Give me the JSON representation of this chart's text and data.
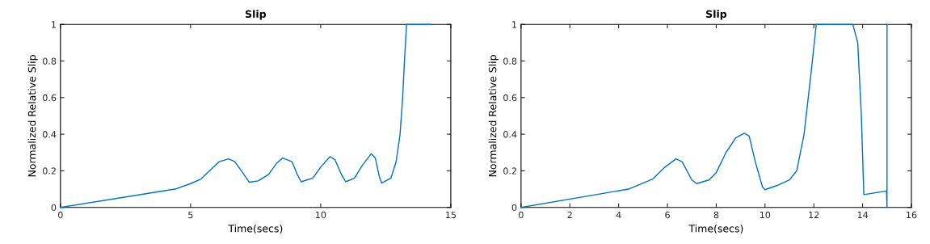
{
  "chart_data": [
    {
      "type": "line",
      "title": "Slip",
      "xlabel": "Time(secs)",
      "ylabel": "Normalized Relative Slip",
      "xlim": [
        0,
        15
      ],
      "xticks": [
        0,
        5,
        10,
        15
      ],
      "ylim": [
        0,
        1
      ],
      "yticks": [
        0,
        0.2,
        0.4,
        0.6,
        0.8,
        1
      ],
      "grid": false,
      "legend": false,
      "series": [
        {
          "color": "#0072bd",
          "x": [
            0,
            4.4,
            5.0,
            5.4,
            5.8,
            6.1,
            6.46,
            6.7,
            7.0,
            7.25,
            7.6,
            8.0,
            8.3,
            8.54,
            8.9,
            9.1,
            9.25,
            9.7,
            10.0,
            10.36,
            10.55,
            10.8,
            10.96,
            11.3,
            11.6,
            11.94,
            12.1,
            12.25,
            12.34,
            12.7,
            12.9,
            13.05,
            13.15,
            13.22,
            13.3,
            14.25
          ],
          "values": [
            0,
            0.1,
            0.13,
            0.155,
            0.21,
            0.25,
            0.265,
            0.25,
            0.19,
            0.138,
            0.145,
            0.18,
            0.24,
            0.27,
            0.25,
            0.18,
            0.14,
            0.16,
            0.22,
            0.278,
            0.26,
            0.18,
            0.14,
            0.16,
            0.23,
            0.293,
            0.27,
            0.17,
            0.133,
            0.16,
            0.25,
            0.4,
            0.6,
            0.8,
            1,
            1
          ]
        }
      ]
    },
    {
      "type": "line",
      "title": "Slip",
      "xlabel": "Time(secs)",
      "ylabel": "Normalized Relative Slip",
      "xlim": [
        0,
        16
      ],
      "xticks": [
        0,
        2,
        4,
        6,
        8,
        10,
        12,
        14,
        16
      ],
      "ylim": [
        0,
        1
      ],
      "yticks": [
        0,
        0.2,
        0.4,
        0.6,
        0.8,
        1
      ],
      "grid": false,
      "legend": false,
      "series": [
        {
          "color": "#0072bd",
          "x": [
            0,
            4.4,
            5.4,
            5.9,
            6.35,
            6.6,
            6.8,
            7.0,
            7.2,
            7.7,
            8.0,
            8.4,
            8.8,
            9.15,
            9.35,
            9.6,
            9.9,
            10.0,
            10.5,
            11.0,
            11.3,
            11.6,
            11.9,
            12.1,
            13.6,
            13.8,
            13.95,
            14.05,
            14.98,
            15.0,
            15.0
          ],
          "values": [
            0,
            0.1,
            0.155,
            0.22,
            0.265,
            0.25,
            0.2,
            0.15,
            0.13,
            0.15,
            0.19,
            0.3,
            0.38,
            0.405,
            0.39,
            0.25,
            0.11,
            0.097,
            0.12,
            0.15,
            0.2,
            0.4,
            0.75,
            1,
            1,
            0.9,
            0.5,
            0.07,
            0.09,
            0,
            1
          ]
        }
      ]
    }
  ]
}
